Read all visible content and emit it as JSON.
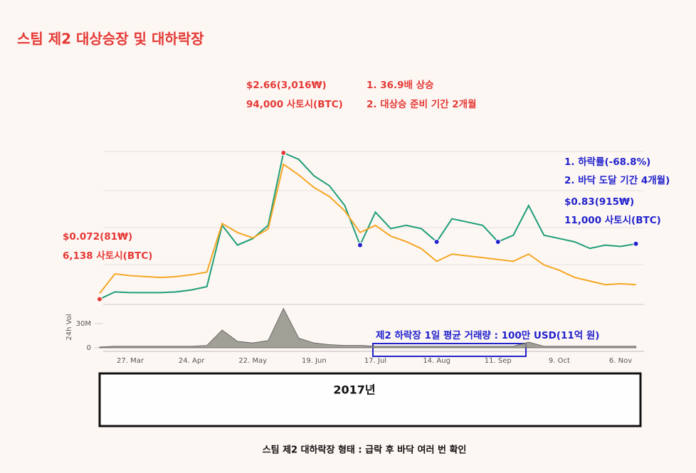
{
  "chart_data": {
    "type": "line",
    "title": "스팀 제2 대상승장 및 대하락장",
    "categories": [
      null,
      null,
      "27. Mar",
      null,
      null,
      null,
      "24. Apr",
      null,
      null,
      null,
      "22. May",
      null,
      null,
      null,
      "19. Jun",
      null,
      null,
      null,
      "17. Jul",
      null,
      null,
      null,
      "14. Aug",
      null,
      null,
      null,
      "11. Sep",
      null,
      null,
      null,
      "9. Oct",
      null,
      null,
      null,
      "6. Nov",
      null
    ],
    "series": [
      {
        "color": "#1e9e78",
        "values": [
          0.08,
          0.19,
          0.18,
          0.18,
          0.18,
          0.19,
          0.22,
          0.27,
          1.2,
          0.9,
          1.0,
          1.2,
          2.3,
          2.2,
          1.95,
          1.8,
          1.5,
          0.9,
          1.4,
          1.15,
          1.2,
          1.15,
          0.95,
          1.3,
          1.25,
          1.2,
          0.95,
          1.05,
          1.5,
          1.05,
          1.0,
          0.95,
          0.85,
          0.9,
          0.88,
          0.92
        ]
      },
      {
        "color": "#f5a623",
        "axis": "y2",
        "values": [
          6138,
          17000,
          16000,
          15500,
          15000,
          15500,
          16500,
          18000,
          45000,
          40000,
          37000,
          42000,
          78000,
          72000,
          65000,
          60000,
          52000,
          40000,
          44000,
          38000,
          35000,
          31000,
          24000,
          28000,
          27000,
          26000,
          25000,
          24000,
          28000,
          22000,
          19000,
          15000,
          13000,
          11000,
          11500,
          11000
        ]
      }
    ],
    "ylim": [
      0,
      3
    ],
    "y2lim": [
      0,
      110000
    ],
    "volume": {
      "label": "24h Vol",
      "color": "#8a8a80",
      "ylim": [
        0,
        60000000
      ],
      "yticks": [
        {
          "value": 30000000,
          "label": "30M"
        },
        0
      ],
      "values": [
        1000000,
        2000000,
        2000000,
        2000000,
        2000000,
        2000000,
        2000000,
        3000000,
        22000000,
        8000000,
        6000000,
        9000000,
        49000000,
        12000000,
        6000000,
        4000000,
        3000000,
        3000000,
        2000000,
        2000000,
        2000000,
        2000000,
        2000000,
        2000000,
        2000000,
        2000000,
        2000000,
        2000000,
        7000000,
        2000000,
        2000000,
        2000000,
        2000000,
        2000000,
        2000000,
        2000000
      ]
    },
    "annotations": [
      {
        "text": "$2.66(3,016₩)",
        "color": "#e53935"
      },
      {
        "text": "94,000 사토시(BTC)",
        "color": "#e53935"
      },
      {
        "text": "1. 36.9배 상승",
        "color": "#e53935"
      },
      {
        "text": "2. 대상승 준비 기간 2개월",
        "color": "#e53935"
      },
      {
        "text": "$0.072(81₩)",
        "color": "#e53935"
      },
      {
        "text": "6,138 사토시(BTC)",
        "color": "#e53935"
      },
      {
        "text": "1. 하락률(-68.8%)",
        "color": "#2222cc"
      },
      {
        "text": "2. 바닥 도달 기간 4개월)",
        "color": "#2222cc"
      },
      {
        "text": "$0.83(915₩)",
        "color": "#2222cc"
      },
      {
        "text": "11,000 사토시(BTC)",
        "color": "#2222cc"
      },
      {
        "text": "제2 하락장 1일 평균 거래량 : 100만 USD(11억 원)",
        "color": "#2222cc"
      }
    ],
    "year_label": "2017년",
    "caption": "스팀 제2 대하락장 형태 : 급락 후 바닥 여러 번 확인"
  }
}
